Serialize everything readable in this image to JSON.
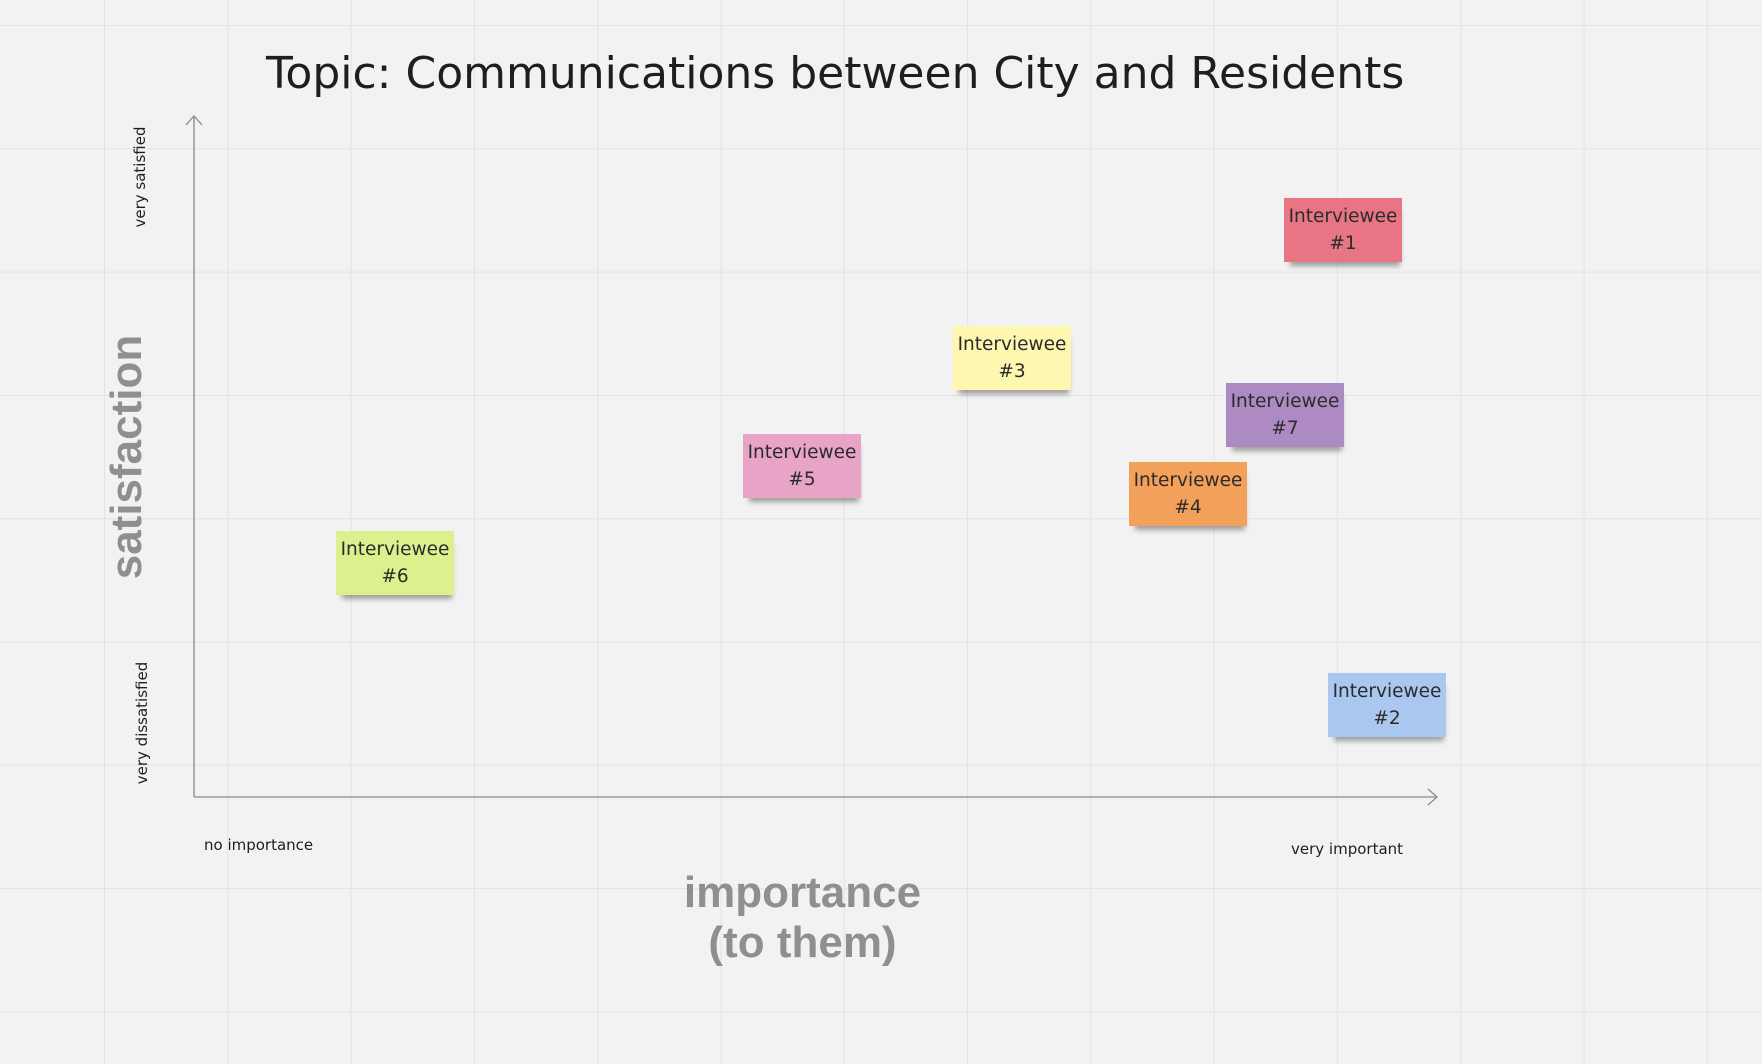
{
  "title": "Topic: Communications between City and Residents",
  "y_axis": {
    "title": "satisfaction",
    "high_label": "very satisfied",
    "low_label": "very dissatisfied"
  },
  "x_axis": {
    "title_line1": "importance",
    "title_line2": "(to them)",
    "low_label": "no importance",
    "high_label": "very important"
  },
  "notes": [
    {
      "id": "1",
      "line1": "Interviewee",
      "line2": "#1",
      "color": "#e87584"
    },
    {
      "id": "2",
      "line1": "Interviewee",
      "line2": "#2",
      "color": "#aac7ef"
    },
    {
      "id": "3",
      "line1": "Interviewee",
      "line2": "#3",
      "color": "#fdf7b0"
    },
    {
      "id": "4",
      "line1": "Interviewee",
      "line2": "#4",
      "color": "#f3a15a"
    },
    {
      "id": "5",
      "line1": "Interviewee",
      "line2": "#5",
      "color": "#e8a4c6"
    },
    {
      "id": "6",
      "line1": "Interviewee",
      "line2": "#6",
      "color": "#dcf18d"
    },
    {
      "id": "7",
      "line1": "Interviewee",
      "line2": "#7",
      "color": "#ad8ac2"
    }
  ]
}
